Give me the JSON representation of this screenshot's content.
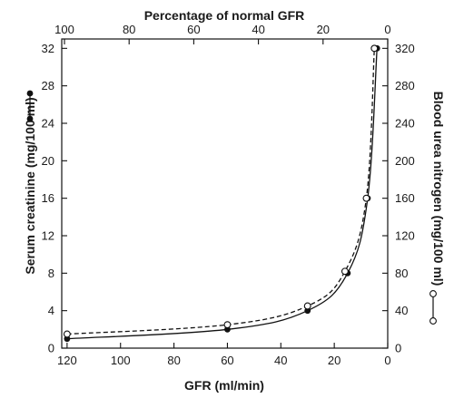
{
  "chart_data": {
    "type": "line",
    "title": "",
    "x_axis_bottom": {
      "label": "GFR (ml/min)",
      "range": [
        0,
        122
      ],
      "reversed": true,
      "ticks": [
        "120",
        "100",
        "80",
        "60",
        "40",
        "20",
        "0"
      ],
      "tick_values": [
        120,
        100,
        80,
        60,
        40,
        20,
        0
      ]
    },
    "x_axis_top": {
      "label": "Percentage of normal GFR",
      "ticks": [
        "100",
        "80",
        "60",
        "40",
        "20",
        "0"
      ],
      "tick_values": [
        100,
        80,
        60,
        40,
        20,
        0
      ]
    },
    "y_axis_left": {
      "label": "Serum creatinine (mg/100 ml)",
      "range": [
        0,
        33
      ],
      "ticks": [
        "0",
        "4",
        "8",
        "12",
        "16",
        "20",
        "24",
        "28",
        "32"
      ],
      "tick_values": [
        0,
        4,
        8,
        12,
        16,
        20,
        24,
        28,
        32
      ]
    },
    "y_axis_right": {
      "label": "Blood urea nitrogen (mg/100 ml)",
      "range": [
        0,
        330
      ],
      "ticks": [
        "0",
        "40",
        "80",
        "120",
        "160",
        "200",
        "240",
        "280",
        "320"
      ],
      "tick_values": [
        0,
        40,
        80,
        120,
        160,
        200,
        240,
        280,
        320
      ]
    },
    "series": [
      {
        "axis": "left",
        "marker": "filled-circle",
        "line_style": "solid",
        "color": "#111111",
        "x": [
          120,
          60,
          30,
          15,
          7.5,
          4
        ],
        "y": [
          1,
          2,
          4,
          8,
          16,
          32
        ]
      },
      {
        "axis": "right",
        "marker": "open-circle",
        "line_style": "dashed",
        "color": "#111111",
        "x": [
          120,
          60,
          30,
          16,
          8,
          5
        ],
        "y": [
          15,
          25,
          45,
          82,
          160,
          320
        ]
      }
    ],
    "grid": false,
    "legend": "series markers shown beside left and right axis titles"
  }
}
